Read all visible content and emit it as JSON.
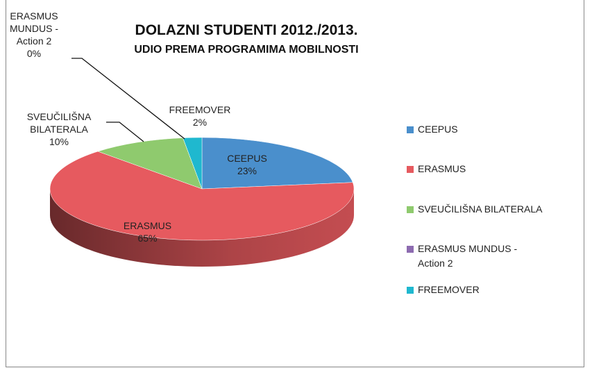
{
  "chart_data": {
    "type": "pie",
    "title": "DOLAZNI STUDENTI 2012./2013.",
    "subtitle": "UDIO PREMA PROGRAMIMA MOBILNOSTI",
    "categories": [
      "CEEPUS",
      "ERASMUS",
      "SVEUČILIŠNA BILATERALA",
      "ERASMUS MUNDUS - Action 2",
      "FREEMOVER"
    ],
    "values": [
      23,
      65,
      10,
      0,
      2
    ],
    "value_labels": [
      "23%",
      "65%",
      "10%",
      "0%",
      "2%"
    ],
    "colors": [
      "#4a8fcc",
      "#e65a5f",
      "#8fca6e",
      "#8d6bb0",
      "#1fb8cf"
    ],
    "legend": "right"
  }
}
